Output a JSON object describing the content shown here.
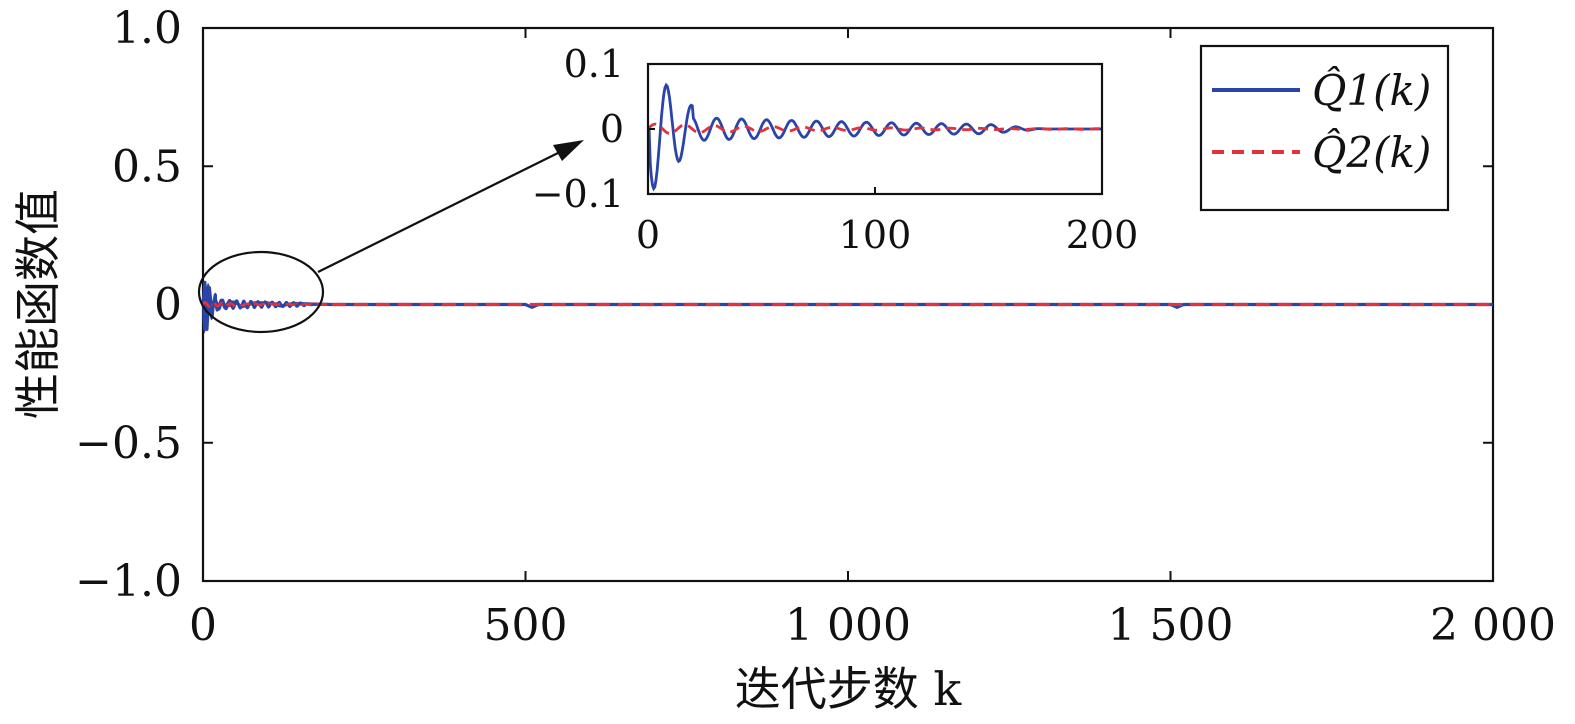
{
  "chart_data": {
    "type": "line",
    "xlabel": "迭代步数 k",
    "ylabel": "性能函数值",
    "xlim": [
      0,
      2000
    ],
    "ylim": [
      -1.0,
      1.0
    ],
    "xticks": [
      0,
      500,
      1000,
      1500,
      2000
    ],
    "xtick_labels": [
      "0",
      "500",
      "1 000",
      "1 500",
      "2 000"
    ],
    "yticks": [
      1.0,
      0.5,
      0,
      -0.5,
      -1.0
    ],
    "ytick_labels": [
      "1.0",
      "0.5",
      "0",
      "−0.5",
      "−1.0"
    ],
    "legend_position": "top-right",
    "series": [
      {
        "name": "Q̂1(k)",
        "color": "#2a44a8",
        "style": "solid",
        "x": [
          0,
          3,
          6,
          10,
          14,
          18,
          22,
          28,
          34,
          40,
          50,
          60,
          80,
          100,
          120,
          140,
          160,
          200,
          500,
          510,
          520,
          1000,
          1500,
          1510,
          1520,
          2000
        ],
        "y": [
          0.0,
          0.08,
          -0.09,
          0.06,
          -0.03,
          0.02,
          -0.02,
          0.015,
          -0.012,
          0.01,
          0.008,
          -0.008,
          0.006,
          0.006,
          -0.005,
          0.004,
          0.002,
          0.0,
          0.0,
          -0.01,
          0.0,
          0.0,
          0.0,
          -0.01,
          0.0,
          0.0
        ]
      },
      {
        "name": "Q̂2(k)",
        "color": "#e0333c",
        "style": "dashed",
        "x": [
          0,
          5,
          10,
          20,
          40,
          80,
          120,
          160,
          200,
          2000
        ],
        "y": [
          0.0,
          0.005,
          -0.008,
          0.005,
          -0.004,
          0.003,
          0.002,
          0.001,
          0.0,
          0.0
        ]
      }
    ],
    "inset": {
      "xlim": [
        0,
        200
      ],
      "ylim": [
        -0.1,
        0.1
      ],
      "xticks": [
        0,
        100,
        200
      ],
      "xtick_labels": [
        "0",
        "100",
        "200"
      ],
      "yticks": [
        0.1,
        0,
        -0.1
      ],
      "ytick_labels": [
        "0.1",
        "0",
        "−0.1"
      ]
    }
  },
  "colors": {
    "q1": "#2a44a8",
    "q2": "#e0333c",
    "axis": "#111111"
  }
}
